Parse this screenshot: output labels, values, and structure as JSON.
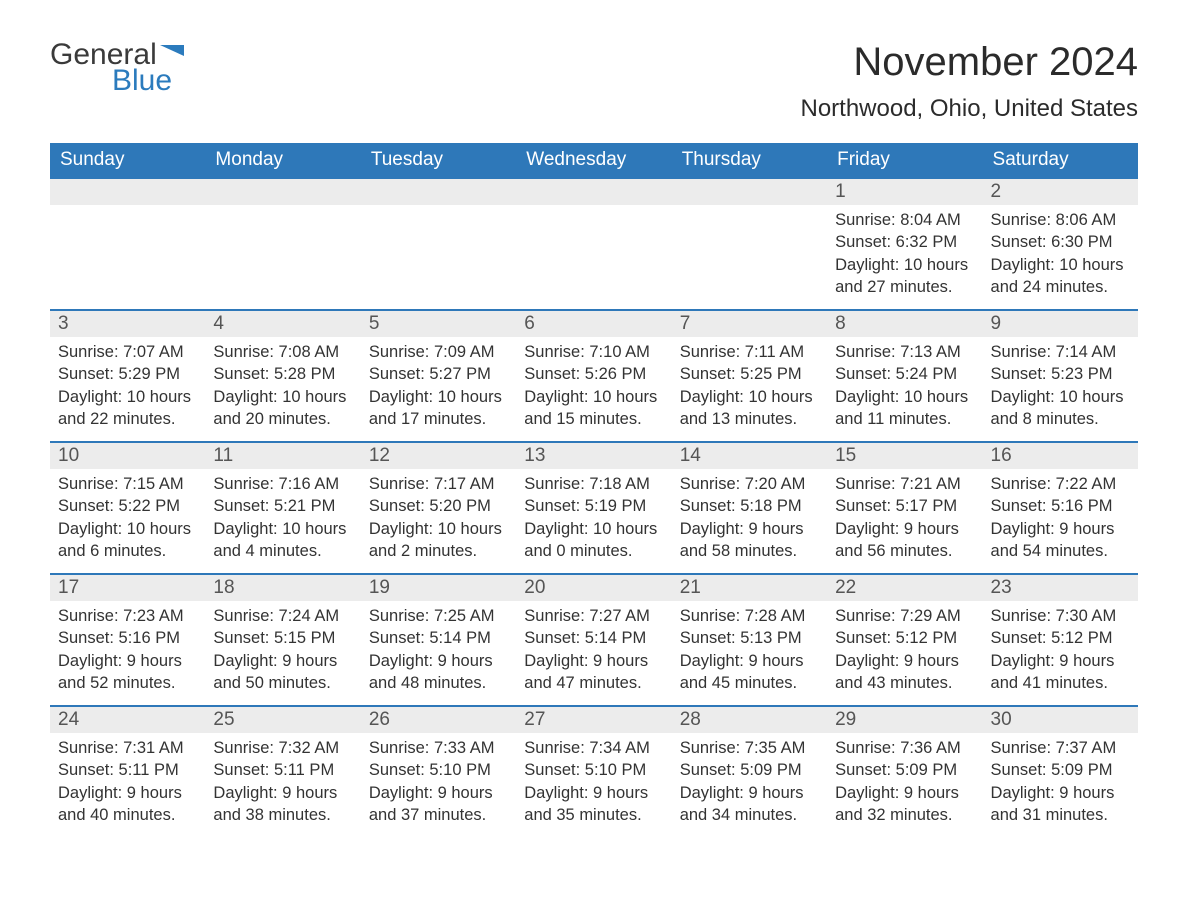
{
  "logo": {
    "line1": "General",
    "line2": "Blue"
  },
  "title": "November 2024",
  "location": "Northwood, Ohio, United States",
  "colors": {
    "header_bg": "#2e78b9",
    "header_text": "#ffffff",
    "daynum_bg": "#ececec",
    "daynum_text": "#555555",
    "body_text": "#333333",
    "row_divider": "#2e78b9",
    "logo_accent": "#2b7bbd",
    "page_bg": "#ffffff"
  },
  "fonts": {
    "title_size_pt": 30,
    "location_size_pt": 18,
    "header_size_pt": 14,
    "daynum_size_pt": 14,
    "body_size_pt": 12
  },
  "days_of_week": [
    "Sunday",
    "Monday",
    "Tuesday",
    "Wednesday",
    "Thursday",
    "Friday",
    "Saturday"
  ],
  "weeks": [
    [
      null,
      null,
      null,
      null,
      null,
      {
        "n": "1",
        "sunrise": "8:04 AM",
        "sunset": "6:32 PM",
        "daylight": "10 hours and 27 minutes."
      },
      {
        "n": "2",
        "sunrise": "8:06 AM",
        "sunset": "6:30 PM",
        "daylight": "10 hours and 24 minutes."
      }
    ],
    [
      {
        "n": "3",
        "sunrise": "7:07 AM",
        "sunset": "5:29 PM",
        "daylight": "10 hours and 22 minutes."
      },
      {
        "n": "4",
        "sunrise": "7:08 AM",
        "sunset": "5:28 PM",
        "daylight": "10 hours and 20 minutes."
      },
      {
        "n": "5",
        "sunrise": "7:09 AM",
        "sunset": "5:27 PM",
        "daylight": "10 hours and 17 minutes."
      },
      {
        "n": "6",
        "sunrise": "7:10 AM",
        "sunset": "5:26 PM",
        "daylight": "10 hours and 15 minutes."
      },
      {
        "n": "7",
        "sunrise": "7:11 AM",
        "sunset": "5:25 PM",
        "daylight": "10 hours and 13 minutes."
      },
      {
        "n": "8",
        "sunrise": "7:13 AM",
        "sunset": "5:24 PM",
        "daylight": "10 hours and 11 minutes."
      },
      {
        "n": "9",
        "sunrise": "7:14 AM",
        "sunset": "5:23 PM",
        "daylight": "10 hours and 8 minutes."
      }
    ],
    [
      {
        "n": "10",
        "sunrise": "7:15 AM",
        "sunset": "5:22 PM",
        "daylight": "10 hours and 6 minutes."
      },
      {
        "n": "11",
        "sunrise": "7:16 AM",
        "sunset": "5:21 PM",
        "daylight": "10 hours and 4 minutes."
      },
      {
        "n": "12",
        "sunrise": "7:17 AM",
        "sunset": "5:20 PM",
        "daylight": "10 hours and 2 minutes."
      },
      {
        "n": "13",
        "sunrise": "7:18 AM",
        "sunset": "5:19 PM",
        "daylight": "10 hours and 0 minutes."
      },
      {
        "n": "14",
        "sunrise": "7:20 AM",
        "sunset": "5:18 PM",
        "daylight": "9 hours and 58 minutes."
      },
      {
        "n": "15",
        "sunrise": "7:21 AM",
        "sunset": "5:17 PM",
        "daylight": "9 hours and 56 minutes."
      },
      {
        "n": "16",
        "sunrise": "7:22 AM",
        "sunset": "5:16 PM",
        "daylight": "9 hours and 54 minutes."
      }
    ],
    [
      {
        "n": "17",
        "sunrise": "7:23 AM",
        "sunset": "5:16 PM",
        "daylight": "9 hours and 52 minutes."
      },
      {
        "n": "18",
        "sunrise": "7:24 AM",
        "sunset": "5:15 PM",
        "daylight": "9 hours and 50 minutes."
      },
      {
        "n": "19",
        "sunrise": "7:25 AM",
        "sunset": "5:14 PM",
        "daylight": "9 hours and 48 minutes."
      },
      {
        "n": "20",
        "sunrise": "7:27 AM",
        "sunset": "5:14 PM",
        "daylight": "9 hours and 47 minutes."
      },
      {
        "n": "21",
        "sunrise": "7:28 AM",
        "sunset": "5:13 PM",
        "daylight": "9 hours and 45 minutes."
      },
      {
        "n": "22",
        "sunrise": "7:29 AM",
        "sunset": "5:12 PM",
        "daylight": "9 hours and 43 minutes."
      },
      {
        "n": "23",
        "sunrise": "7:30 AM",
        "sunset": "5:12 PM",
        "daylight": "9 hours and 41 minutes."
      }
    ],
    [
      {
        "n": "24",
        "sunrise": "7:31 AM",
        "sunset": "5:11 PM",
        "daylight": "9 hours and 40 minutes."
      },
      {
        "n": "25",
        "sunrise": "7:32 AM",
        "sunset": "5:11 PM",
        "daylight": "9 hours and 38 minutes."
      },
      {
        "n": "26",
        "sunrise": "7:33 AM",
        "sunset": "5:10 PM",
        "daylight": "9 hours and 37 minutes."
      },
      {
        "n": "27",
        "sunrise": "7:34 AM",
        "sunset": "5:10 PM",
        "daylight": "9 hours and 35 minutes."
      },
      {
        "n": "28",
        "sunrise": "7:35 AM",
        "sunset": "5:09 PM",
        "daylight": "9 hours and 34 minutes."
      },
      {
        "n": "29",
        "sunrise": "7:36 AM",
        "sunset": "5:09 PM",
        "daylight": "9 hours and 32 minutes."
      },
      {
        "n": "30",
        "sunrise": "7:37 AM",
        "sunset": "5:09 PM",
        "daylight": "9 hours and 31 minutes."
      }
    ]
  ],
  "labels": {
    "sunrise": "Sunrise: ",
    "sunset": "Sunset: ",
    "daylight": "Daylight: "
  }
}
